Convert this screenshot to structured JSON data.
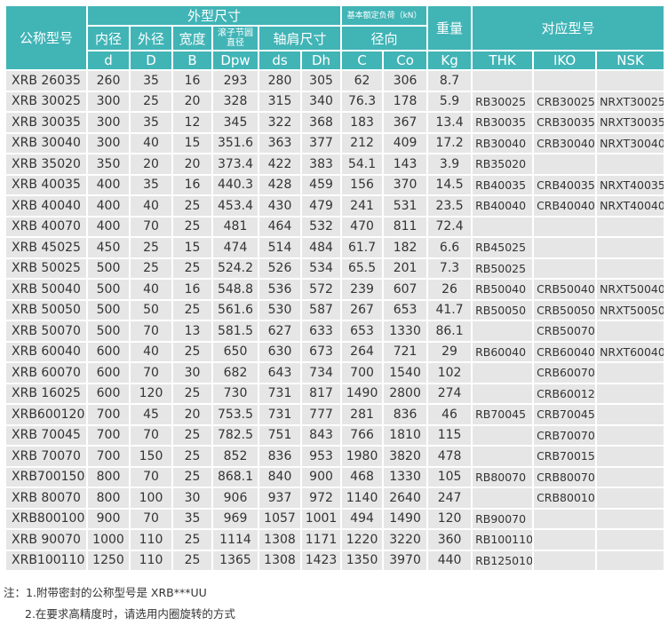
{
  "table": {
    "header": {
      "model": "公称型号",
      "dimensions": "外型尺寸",
      "load_rating": "基本额定负荷（kN）",
      "weight": "重量",
      "corresponding": "对应型号",
      "inner_diameter": "内径",
      "outer_diameter": "外径",
      "width": "宽度",
      "pitch_diameter": "滚子节圆直径",
      "shoulder": "轴肩尺寸",
      "radial": "径向",
      "symbols": [
        "d",
        "D",
        "B",
        "Dpw",
        "ds",
        "Dh",
        "C",
        "Co",
        "Kg",
        "THK",
        "IKO",
        "NSK"
      ]
    },
    "rows": [
      [
        "XRB 26035",
        260,
        35,
        16,
        293,
        280,
        305,
        62,
        306,
        8.7,
        null,
        null,
        null
      ],
      [
        "XRB 30025",
        300,
        25,
        20,
        328,
        315,
        340,
        76.3,
        178,
        5.9,
        "RB30025",
        "CRB30025",
        "NRXT30025"
      ],
      [
        "XRB 30035",
        300,
        35,
        12,
        345,
        322,
        368,
        183,
        367,
        13.4,
        "RB30035",
        "CRB30035",
        "NRXT30035"
      ],
      [
        "XRB 30040",
        300,
        40,
        15,
        351.6,
        363,
        377,
        212,
        409,
        17.2,
        "RB30040",
        "CRB30040",
        "NRXT30040"
      ],
      [
        "XRB 35020",
        350,
        20,
        20,
        373.4,
        422,
        383,
        54.1,
        143,
        3.9,
        "RB35020",
        null,
        null
      ],
      [
        "XRB 40035",
        400,
        35,
        16,
        440.3,
        428,
        459,
        156,
        370,
        14.5,
        "RB40035",
        "CRB40035",
        "NRXT40035"
      ],
      [
        "XRB 40040",
        400,
        40,
        25,
        453.4,
        430,
        479,
        241,
        531,
        23.5,
        "RB40040",
        "CRB40040",
        "NRXT40040"
      ],
      [
        "XRB 40070",
        400,
        70,
        25,
        481,
        464,
        532,
        470,
        811,
        72.4,
        null,
        null,
        null
      ],
      [
        "XRB 45025",
        450,
        25,
        15,
        474,
        514,
        484,
        61.7,
        182,
        6.6,
        "RB45025",
        null,
        null
      ],
      [
        "XRB 50025",
        500,
        25,
        25,
        524.2,
        526,
        534,
        65.5,
        201,
        7.3,
        "RB50025",
        null,
        null
      ],
      [
        "XRB 50040",
        500,
        40,
        16,
        548.8,
        536,
        572,
        239,
        607,
        26,
        "RB50040",
        "CRB50040",
        "NRXT50040"
      ],
      [
        "XRB 50050",
        500,
        50,
        25,
        561.6,
        530,
        587,
        267,
        653,
        41.7,
        "RB50050",
        "CRB50050",
        "NRXT50050"
      ],
      [
        "XRB 50070",
        500,
        70,
        13,
        581.5,
        627,
        633,
        653,
        1330,
        86.1,
        null,
        "CRB50070",
        null
      ],
      [
        "XRB 60040",
        600,
        40,
        25,
        650,
        630,
        673,
        264,
        721,
        29,
        "RB60040",
        "CRB60040",
        "NRXT60040"
      ],
      [
        "XRB 60070",
        600,
        70,
        30,
        682,
        643,
        734,
        700,
        1540,
        102,
        null,
        "CRB60070",
        null
      ],
      [
        "XRB 16025",
        600,
        120,
        25,
        730,
        731,
        817,
        1490,
        2800,
        274,
        null,
        "CRB60012",
        null
      ],
      [
        "XRB600120",
        700,
        45,
        20,
        753.5,
        731,
        777,
        281,
        836,
        46,
        "RB70045",
        "CRB70045",
        null
      ],
      [
        "XRB 70045",
        700,
        70,
        25,
        782.5,
        751,
        843,
        766,
        1810,
        115,
        null,
        "CRB70070",
        null
      ],
      [
        "XRB 70070",
        700,
        150,
        25,
        852,
        836,
        953,
        1980,
        3820,
        478,
        null,
        "CRB70015",
        null
      ],
      [
        "XRB700150",
        800,
        70,
        25,
        868.1,
        840,
        900,
        468,
        1330,
        105,
        "RB80070",
        "CRB80070",
        null
      ],
      [
        "XRB 80070",
        800,
        100,
        30,
        906,
        937,
        972,
        1140,
        2640,
        247,
        null,
        "CRB80010",
        null
      ],
      [
        "XRB800100",
        900,
        70,
        35,
        969,
        1057,
        1001,
        494,
        1490,
        120,
        "RB90070",
        null,
        null
      ],
      [
        "XRB 90070",
        1000,
        110,
        25,
        1114,
        1308,
        1171,
        1220,
        3220,
        360,
        "RB100110",
        null,
        null
      ],
      [
        "XRB100110",
        1250,
        110,
        25,
        1365,
        1308,
        1423,
        1350,
        3970,
        440,
        "RB125010",
        null,
        null
      ]
    ]
  },
  "notes": {
    "label": "注：",
    "items": [
      "1.附带密封的公称型号是 XRB***UU",
      "2.在要求高精度时，请选用内圈旋转的方式"
    ]
  }
}
